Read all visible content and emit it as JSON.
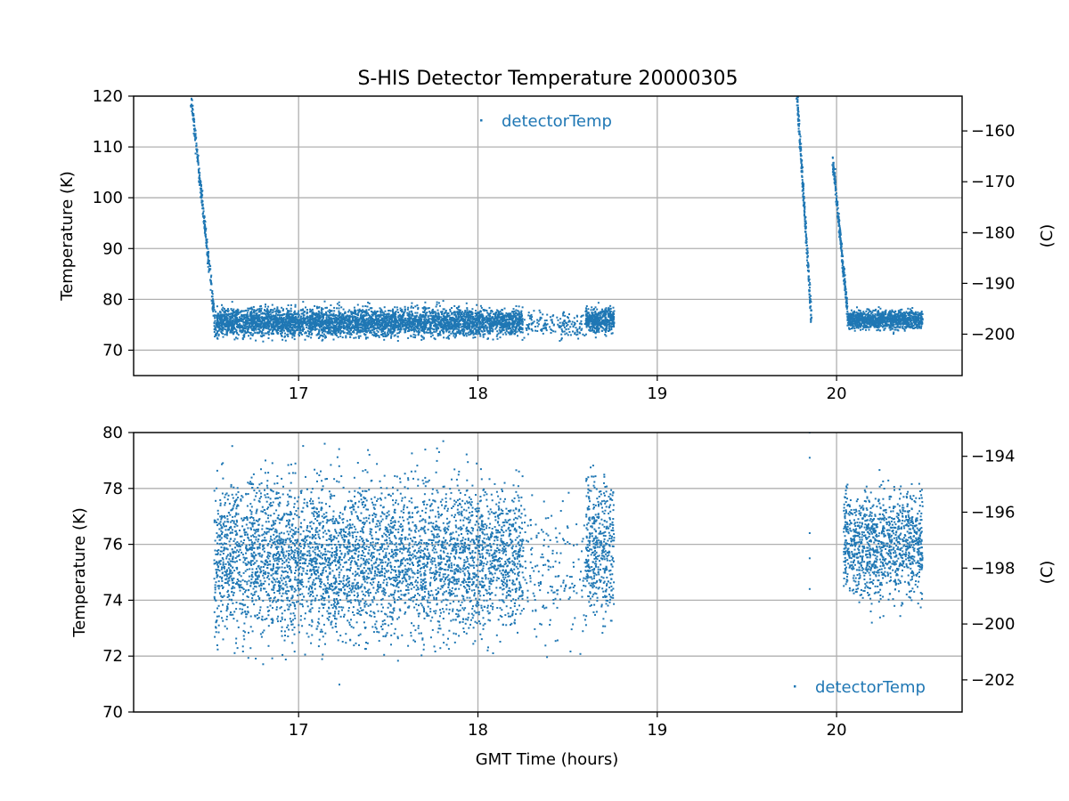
{
  "title": "S-HIS Detector Temperature 20000305",
  "colors": {
    "series": "#1f77b4",
    "grid": "#b0b0b0",
    "axes": "#000000"
  },
  "chart_data": [
    {
      "type": "scatter",
      "panel": "top",
      "title": "S-HIS Detector Temperature 20000305",
      "xlabel": "",
      "ylabel": "Temperature (K)",
      "y2label": "(C)",
      "xlim": [
        16.08,
        20.7
      ],
      "ylim": [
        65,
        120
      ],
      "y2lim": [
        -208.15,
        -153.15
      ],
      "xticks": [
        "17",
        "18",
        "19",
        "20"
      ],
      "xtick_values": [
        17,
        18,
        19,
        20
      ],
      "yticks": [
        "70",
        "80",
        "90",
        "100",
        "110",
        "120"
      ],
      "ytick_values": [
        70,
        80,
        90,
        100,
        110,
        120
      ],
      "y2ticks": [
        "−200",
        "−190",
        "−180",
        "−170",
        "−160"
      ],
      "y2tick_values": [
        -200,
        -190,
        -180,
        -170,
        -160
      ],
      "grid": true,
      "legend": {
        "position": "upper-center",
        "entries": [
          "detectorTemp"
        ]
      },
      "series": [
        {
          "name": "detectorTemp",
          "marker": "point",
          "segments": [
            {
              "kind": "ramp",
              "x": [
                16.4,
                16.53
              ],
              "y": [
                120,
                77
              ]
            },
            {
              "kind": "band",
              "x": [
                16.53,
                18.25
              ],
              "y_mean": 75.5,
              "y_spread": 4.5
            },
            {
              "kind": "band_sparse",
              "x": [
                18.25,
                18.6
              ],
              "y_mean": 75,
              "y_spread": 4
            },
            {
              "kind": "band",
              "x": [
                18.6,
                18.76
              ],
              "y_mean": 76,
              "y_spread": 4
            },
            {
              "kind": "ramp",
              "x": [
                19.78,
                19.86
              ],
              "y": [
                120,
                76
              ]
            },
            {
              "kind": "ramp",
              "x": [
                19.98,
                20.06
              ],
              "y": [
                107,
                78
              ]
            },
            {
              "kind": "band",
              "x": [
                20.06,
                20.48
              ],
              "y_mean": 76,
              "y_spread": 3
            }
          ]
        }
      ]
    },
    {
      "type": "scatter",
      "panel": "bottom",
      "xlabel": "GMT Time (hours)",
      "ylabel": "Temperature (K)",
      "y2label": "(C)",
      "xlim": [
        16.08,
        20.7
      ],
      "ylim": [
        70,
        80
      ],
      "y2lim": [
        -203.15,
        -193.15
      ],
      "xticks": [
        "17",
        "18",
        "19",
        "20"
      ],
      "xtick_values": [
        17,
        18,
        19,
        20
      ],
      "yticks": [
        "70",
        "72",
        "74",
        "76",
        "78",
        "80"
      ],
      "ytick_values": [
        70,
        72,
        74,
        76,
        78,
        80
      ],
      "y2ticks": [
        "−202",
        "−200",
        "−198",
        "−196",
        "−194"
      ],
      "y2tick_values": [
        -202,
        -200,
        -198,
        -196,
        -194
      ],
      "grid": true,
      "legend": {
        "position": "lower-right",
        "entries": [
          "detectorTemp"
        ]
      },
      "series": [
        {
          "name": "detectorTemp",
          "marker": "point",
          "segments": [
            {
              "kind": "band",
              "x": [
                16.53,
                18.25
              ],
              "y_mean": 75.5,
              "y_spread": 4.5
            },
            {
              "kind": "band_sparse",
              "x": [
                18.25,
                18.6
              ],
              "y_mean": 75,
              "y_spread": 4
            },
            {
              "kind": "band",
              "x": [
                18.6,
                18.76
              ],
              "y_mean": 76,
              "y_spread": 4
            },
            {
              "kind": "points",
              "x": [
                19.85,
                19.85,
                19.85,
                19.85,
                19.85
              ],
              "y": [
                80,
                79.1,
                76.4,
                75.5,
                74.4
              ]
            },
            {
              "kind": "band",
              "x": [
                20.04,
                20.48
              ],
              "y_mean": 76,
              "y_spread": 3.2
            }
          ]
        }
      ]
    }
  ]
}
